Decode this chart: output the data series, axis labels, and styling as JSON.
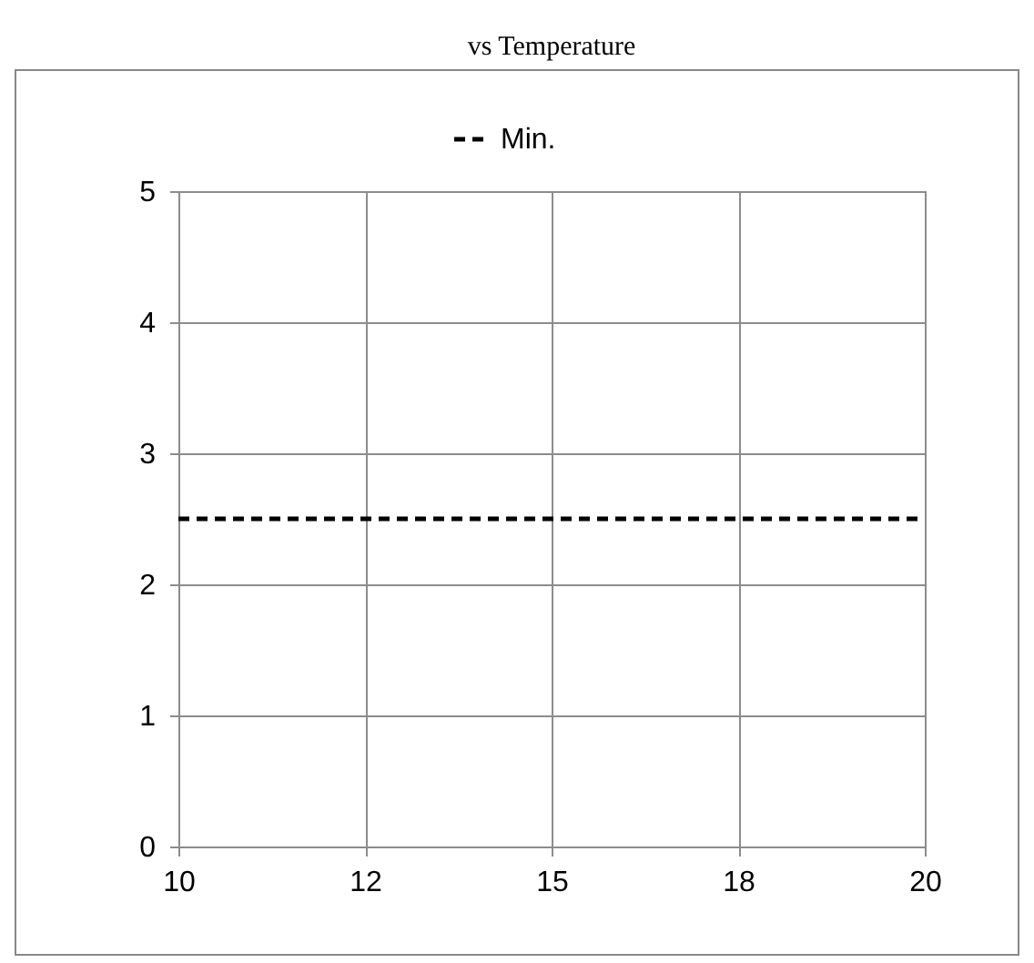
{
  "chart_data": {
    "type": "line",
    "title": "vs Temperature",
    "categories": [
      "10",
      "12",
      "15",
      "18",
      "20"
    ],
    "series": [
      {
        "name": "Min.",
        "color": "#000000",
        "values": [
          2.5,
          2.5,
          2.5,
          2.5,
          2.5
        ]
      }
    ],
    "ylim": [
      0,
      5
    ],
    "yticks": [
      0,
      1,
      2,
      3,
      4,
      5
    ],
    "grid": true,
    "legend": "top",
    "line_style": "dashed",
    "marker": "none"
  }
}
